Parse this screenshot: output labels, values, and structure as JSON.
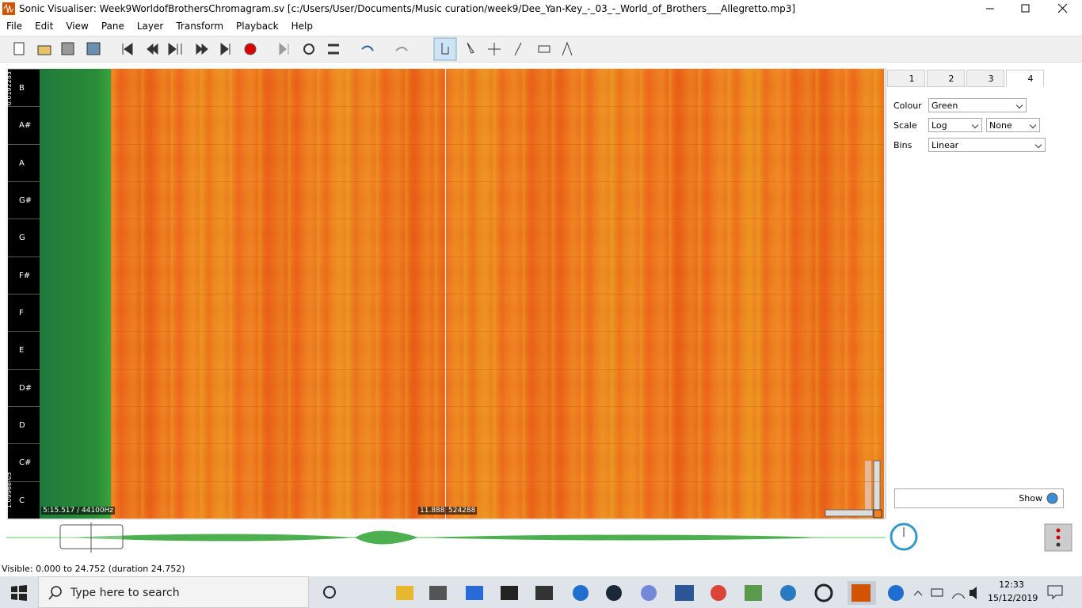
{
  "window": {
    "title": "Sonic Visualiser: Week9WorldofBrothersChromagram.sv [c:/Users/User/Documents/Music curation/week9/Dee_Yan-Key_-_03_-_World_of_Brothers___Allegretto.mp3]",
    "menu": [
      "File",
      "Edit",
      "View",
      "Pane",
      "Layer",
      "Transform",
      "Playback",
      "Help"
    ]
  },
  "pane": {
    "pitch_labels": [
      "B",
      "A#",
      "A",
      "G#",
      "G",
      "F#",
      "F",
      "E",
      "D#",
      "D",
      "C#",
      "C"
    ],
    "scale_labels": [
      "0.0192283",
      "1.0996e-05"
    ],
    "overlay": {
      "time": "5:15.517 / 44100Hz",
      "position": "11.888",
      "window_size": "524288"
    }
  },
  "properties": {
    "tabs": [
      "1",
      "2",
      "3",
      "4"
    ],
    "colour": {
      "label": "Colour",
      "value": "Green"
    },
    "scale": {
      "label": "Scale",
      "value": "Log",
      "normalization": "None"
    },
    "bins": {
      "label": "Bins",
      "value": "Linear"
    },
    "show": "Show"
  },
  "status": "Visible: 0.000 to 24.752 (duration 24.752)",
  "taskbar": {
    "search": "Type here to search",
    "time": "12:33",
    "date": "15/12/2019"
  }
}
